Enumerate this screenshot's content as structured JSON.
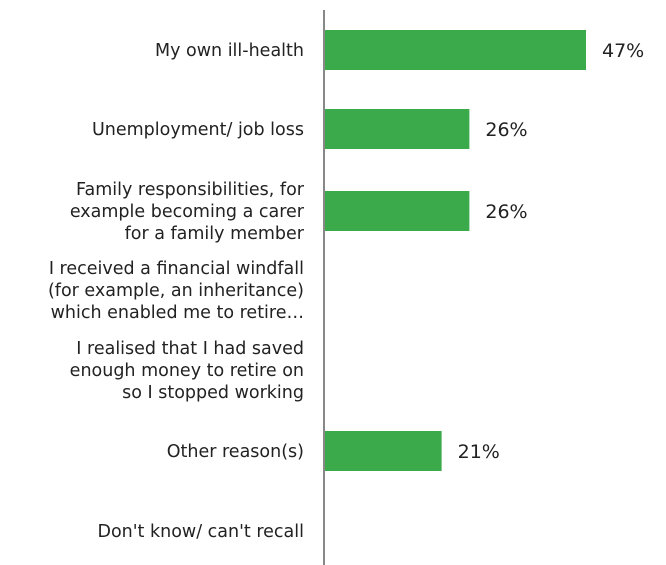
{
  "chart_data": {
    "type": "bar",
    "orientation": "horizontal",
    "categories": [
      [
        "My own ill-health"
      ],
      [
        "Unemployment/ job loss"
      ],
      [
        "Family responsibilities, for",
        "example becoming a carer",
        "for a family member"
      ],
      [
        "I received a financial windfall",
        "(for example, an inheritance)",
        "which enabled me to retire…"
      ],
      [
        "I realised that I had saved",
        "enough money to retire on",
        "so I stopped working"
      ],
      [
        "Other reason(s)"
      ],
      [
        "Don't know/ can't recall"
      ]
    ],
    "values": [
      47,
      26,
      26,
      null,
      null,
      21,
      null
    ],
    "value_labels": [
      "47%",
      "26%",
      "26%",
      "",
      "",
      "21%",
      ""
    ],
    "xlim": [
      0,
      50
    ],
    "bar_color": "#3aaa4a",
    "axis_color": "#888888",
    "grid": false,
    "legend": "none"
  }
}
